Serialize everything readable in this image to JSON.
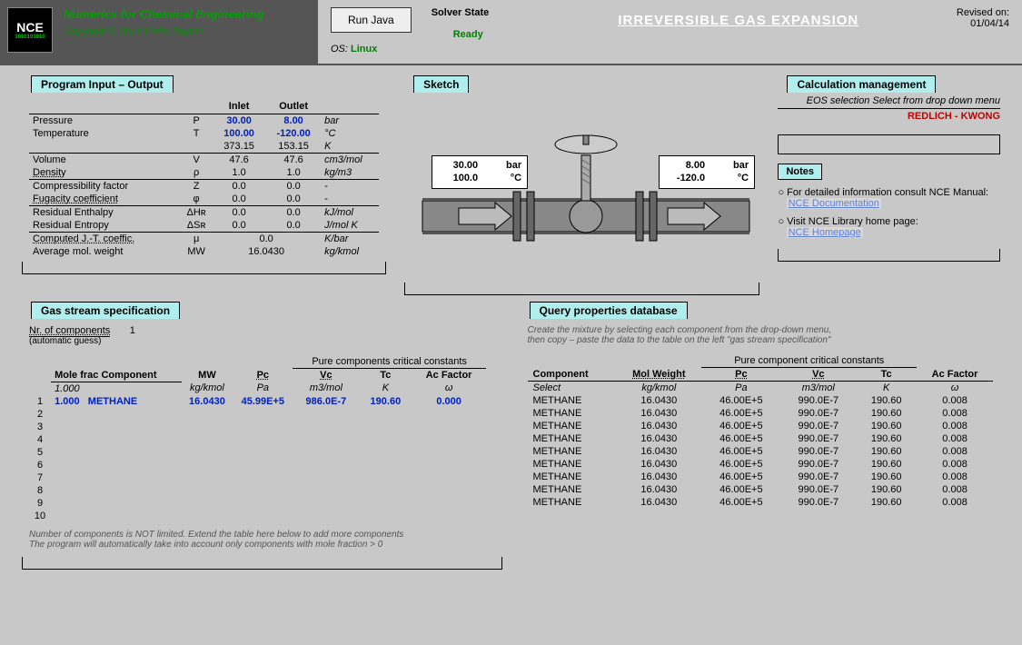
{
  "header": {
    "brand_line": "Numerics for Chemical Engineering",
    "copyright": "Copyright © 2014 Carlo Tegano",
    "run_btn": "Run Java",
    "os_label": "OS:",
    "os_value": "Linux",
    "solver_label": "Solver State",
    "solver_state": "Ready",
    "page_title": "IRREVERSIBLE GAS EXPANSION",
    "revised_label": "Revised on:",
    "revised_date": "01/04/14"
  },
  "io": {
    "title": "Program Input – Output",
    "col_inlet": "Inlet",
    "col_outlet": "Outlet",
    "rows": [
      {
        "label": "Pressure",
        "sym": "P",
        "in": "30.00",
        "out": "8.00",
        "unit": "bar",
        "blue": true
      },
      {
        "label": "Temperature",
        "sym": "T",
        "in": "100.00",
        "out": "-120.00",
        "unit": "°C",
        "blue": true
      },
      {
        "label": "",
        "sym": "",
        "in": "373.15",
        "out": "153.15",
        "unit": "K"
      },
      {
        "label": "Volume",
        "sym": "V",
        "in": "47.6",
        "out": "47.6",
        "unit": "cm3/mol",
        "sep": true
      },
      {
        "label": "Density",
        "sym": "ρ",
        "in": "1.0",
        "out": "1.0",
        "unit": "kg/m3",
        "ul": true
      },
      {
        "label": "Compressibility factor",
        "sym": "Z",
        "in": "0.0",
        "out": "0.0",
        "unit": "-",
        "sep": true
      },
      {
        "label": "Fugacity coefficient",
        "sym": "φ",
        "in": "0.0",
        "out": "0.0",
        "unit": "-",
        "ul": true
      },
      {
        "label": "Residual Enthalpy",
        "sym": "ΔHʀ",
        "in": "0.0",
        "out": "0.0",
        "unit": "kJ/mol",
        "sep": true
      },
      {
        "label": "Residual Entropy",
        "sym": "ΔSʀ",
        "in": "0.0",
        "out": "0.0",
        "unit": "J/mol K"
      }
    ],
    "jt_label": "Computed J.-T. coeffic.",
    "jt_sym": "μ",
    "jt_val": "0.0",
    "jt_unit": "K/bar",
    "mw_label": "Average mol. weight",
    "mw_sym": "MW",
    "mw_val": "16.0430",
    "mw_unit": "kg/kmol"
  },
  "sketch": {
    "title": "Sketch",
    "inlet_p": "30.00",
    "inlet_p_unit": "bar",
    "inlet_t": "100.0",
    "inlet_t_unit": "°C",
    "outlet_p": "8.00",
    "outlet_p_unit": "bar",
    "outlet_t": "-120.0",
    "outlet_t_unit": "°C"
  },
  "calc": {
    "title": "Calculation management",
    "eos_label": "EOS selection  Select from drop down menu",
    "eos_value": "REDLICH - KWONG",
    "notes_title": "Notes",
    "note1": "For detailed information consult NCE Manual:",
    "link1": "NCE Documentation",
    "note2": "Visit NCE Library home page:",
    "link2": "NCE Homepage"
  },
  "gas": {
    "title": "Gas stream specification",
    "n_label": "Nr. of components",
    "n_val": "1",
    "auto": "(automatic guess)",
    "crit_header": "Pure components critical constants",
    "cols": {
      "mf": "Mole frac",
      "comp": "Component",
      "mw": "MW",
      "pc": "Pc",
      "vc": "Vc",
      "tc": "Tc",
      "ac": "Ac Factor"
    },
    "units": {
      "mf": "1.000",
      "mw": "kg/kmol",
      "pc": "Pa",
      "vc": "m3/mol",
      "tc": "K",
      "ac": "ω"
    },
    "row1": {
      "mf": "1.000",
      "comp": "METHANE",
      "mw": "16.0430",
      "pc": "45.99E+5",
      "vc": "986.0E-7",
      "tc": "190.60",
      "ac": "0.000"
    },
    "note1": "Number of components is NOT limited. Extend the table here below to add more components",
    "note2": "The program will automatically take into account only components with mole fraction > 0"
  },
  "query": {
    "title": "Query properties database",
    "hint1": "Create the mixture by selecting each component from the drop-down menu,",
    "hint2": "then copy – paste the data to the table on the left \"gas stream specification\"",
    "crit_header": "Pure component critical constants",
    "cols": {
      "comp": "Component",
      "sel": "Select",
      "mw": "Mol Weight",
      "pc": "Pc",
      "vc": "Vc",
      "tc": "Tc",
      "ac": "Ac Factor"
    },
    "units": {
      "mw": "kg/kmol",
      "pc": "Pa",
      "vc": "m3/mol",
      "tc": "K",
      "ac": "ω"
    },
    "rows": [
      {
        "comp": "METHANE",
        "mw": "16.0430",
        "pc": "46.00E+5",
        "vc": "990.0E-7",
        "tc": "190.60",
        "ac": "0.008"
      },
      {
        "comp": "METHANE",
        "mw": "16.0430",
        "pc": "46.00E+5",
        "vc": "990.0E-7",
        "tc": "190.60",
        "ac": "0.008"
      },
      {
        "comp": "METHANE",
        "mw": "16.0430",
        "pc": "46.00E+5",
        "vc": "990.0E-7",
        "tc": "190.60",
        "ac": "0.008"
      },
      {
        "comp": "METHANE",
        "mw": "16.0430",
        "pc": "46.00E+5",
        "vc": "990.0E-7",
        "tc": "190.60",
        "ac": "0.008"
      },
      {
        "comp": "METHANE",
        "mw": "16.0430",
        "pc": "46.00E+5",
        "vc": "990.0E-7",
        "tc": "190.60",
        "ac": "0.008"
      },
      {
        "comp": "METHANE",
        "mw": "16.0430",
        "pc": "46.00E+5",
        "vc": "990.0E-7",
        "tc": "190.60",
        "ac": "0.008"
      },
      {
        "comp": "METHANE",
        "mw": "16.0430",
        "pc": "46.00E+5",
        "vc": "990.0E-7",
        "tc": "190.60",
        "ac": "0.008"
      },
      {
        "comp": "METHANE",
        "mw": "16.0430",
        "pc": "46.00E+5",
        "vc": "990.0E-7",
        "tc": "190.60",
        "ac": "0.008"
      },
      {
        "comp": "METHANE",
        "mw": "16.0430",
        "pc": "46.00E+5",
        "vc": "990.0E-7",
        "tc": "190.60",
        "ac": "0.008"
      }
    ]
  }
}
